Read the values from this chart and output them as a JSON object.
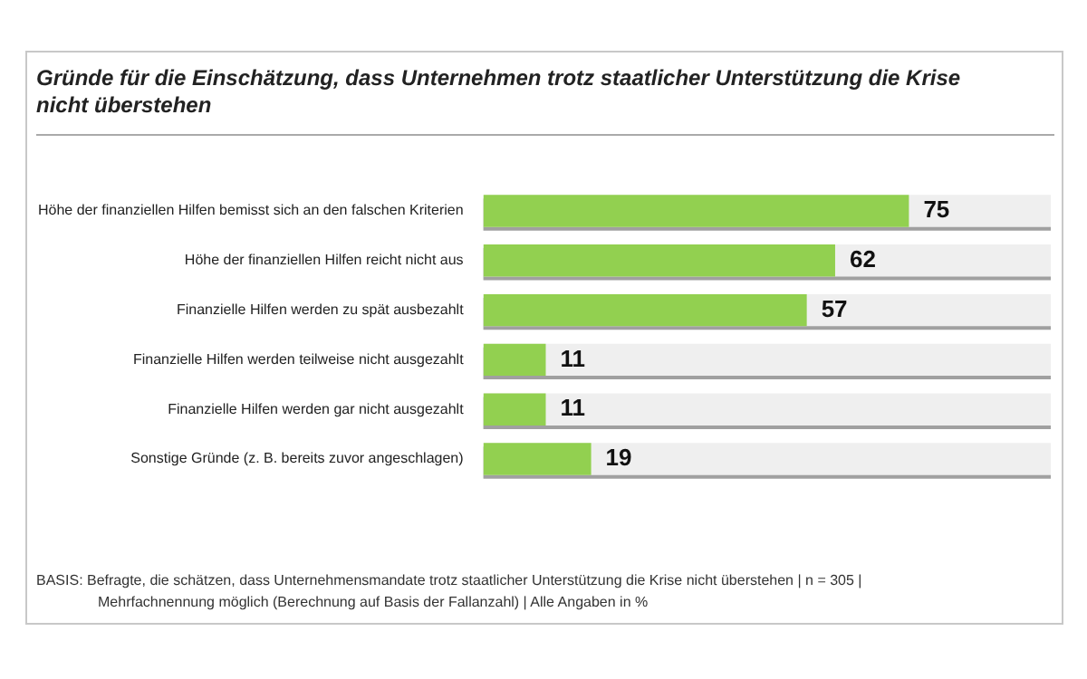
{
  "chart_data": {
    "type": "bar",
    "orientation": "horizontal",
    "title": "Gründe für die Einschätzung, dass Unternehmen trotz staatlicher Unterstützung die Krise nicht überstehen",
    "categories": [
      "Höhe der finanziellen Hilfen bemisst sich an den falschen Kriterien",
      "Höhe der finanziellen Hilfen reicht nicht aus",
      "Finanzielle Hilfen werden zu spät ausbezahlt",
      "Finanzielle Hilfen werden teilweise nicht ausgezahlt",
      "Finanzielle Hilfen werden gar nicht ausgezahlt",
      "Sonstige Gründe (z. B. bereits zuvor angeschlagen)"
    ],
    "values": [
      75,
      62,
      57,
      11,
      11,
      19
    ],
    "color": "#92d050",
    "xlim": [
      0,
      100
    ],
    "tick_labels": "y",
    "legend": false,
    "data_labels": true,
    "annotations": [
      "BASIS: Befragte, die schätzen, dass Unternehmensmandate trotz staatlicher Unterstützung die Krise nicht überstehen | n = 305 | Mehrfachnennung möglich (Berechnung auf Basis der Fallanzahl) | Alle Angaben in %"
    ]
  }
}
